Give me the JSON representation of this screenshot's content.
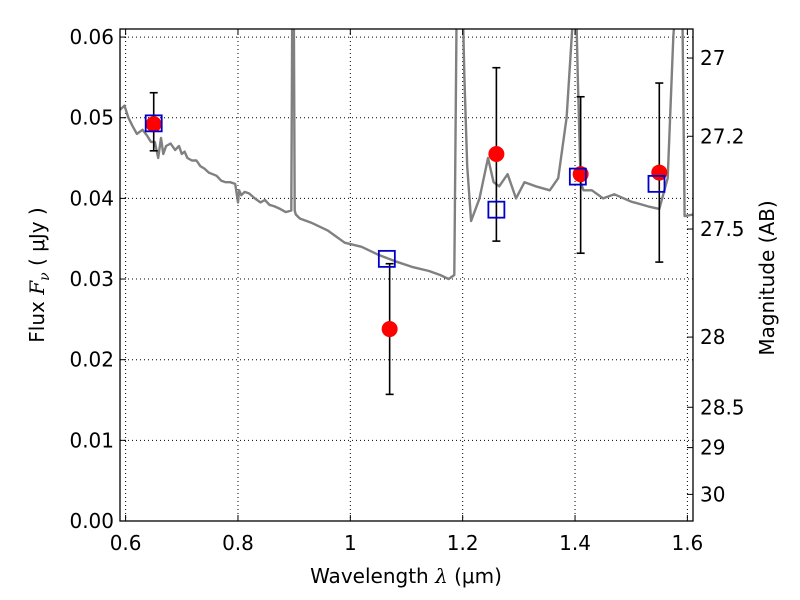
{
  "chart_data": {
    "type": "scatter",
    "title": "",
    "xlabel": {
      "prefix": "Wavelength ",
      "symbol": "λ",
      "unit": " (μm)"
    },
    "ylabel": {
      "prefix": "Flux ",
      "symbol": "F",
      "subscript": "ν",
      "unit": " ( μJy )"
    },
    "ylabel_right": "Magnitude (AB)",
    "xlim": [
      0.59,
      1.61
    ],
    "ylim": [
      0.0,
      0.061
    ],
    "grid": true,
    "grid_style": "dotted",
    "x_ticks": [
      0.6,
      0.8,
      1.0,
      1.2,
      1.4,
      1.6
    ],
    "x_tick_labels": [
      "0.6",
      "0.8",
      "1",
      "1.2",
      "1.4",
      "1.6"
    ],
    "y_ticks": [
      0.0,
      0.01,
      0.02,
      0.03,
      0.04,
      0.05,
      0.06
    ],
    "y_tick_labels": [
      "0.00",
      "0.01",
      "0.02",
      "0.03",
      "0.04",
      "0.05",
      "0.06"
    ],
    "right_ticks": [
      {
        "label": "27",
        "flux": 0.0574
      },
      {
        "label": "27.2",
        "flux": 0.0477
      },
      {
        "label": "27.5",
        "flux": 0.0362
      },
      {
        "label": "28",
        "flux": 0.0228
      },
      {
        "label": "28.5",
        "flux": 0.0141
      },
      {
        "label": "29",
        "flux": 0.0091
      },
      {
        "label": "30",
        "flux": 0.0033
      }
    ],
    "series": [
      {
        "kind": "line",
        "color": "#808080",
        "x": [
          0.59,
          0.598,
          0.605,
          0.612,
          0.62,
          0.63,
          0.638,
          0.645,
          0.652,
          0.658,
          0.663,
          0.667,
          0.672,
          0.68,
          0.688,
          0.695,
          0.7,
          0.705,
          0.71,
          0.718,
          0.726,
          0.733,
          0.74,
          0.748,
          0.755,
          0.762,
          0.77,
          0.778,
          0.786,
          0.795,
          0.8,
          0.802,
          0.806,
          0.812,
          0.82,
          0.83,
          0.84,
          0.848,
          0.856,
          0.865,
          0.875,
          0.885,
          0.895,
          0.897,
          0.899,
          0.901,
          0.903,
          0.91,
          0.93,
          0.96,
          0.99,
          1.02,
          1.05,
          1.08,
          1.11,
          1.14,
          1.16,
          1.175,
          1.185,
          1.19,
          1.198,
          1.203,
          1.208,
          1.215,
          1.23,
          1.245,
          1.255,
          1.265,
          1.28,
          1.295,
          1.31,
          1.33,
          1.355,
          1.37,
          1.385,
          1.395,
          1.4,
          1.405,
          1.41,
          1.415,
          1.43,
          1.45,
          1.47,
          1.5,
          1.53,
          1.55,
          1.565,
          1.575,
          1.585,
          1.59,
          1.595,
          1.61
        ],
        "y": [
          0.051,
          0.0515,
          0.05,
          0.049,
          0.048,
          0.0485,
          0.0478,
          0.047,
          0.047,
          0.045,
          0.0475,
          0.0455,
          0.0465,
          0.0468,
          0.046,
          0.0465,
          0.0455,
          0.0458,
          0.045,
          0.0447,
          0.0447,
          0.044,
          0.0437,
          0.0432,
          0.043,
          0.0428,
          0.0422,
          0.042,
          0.042,
          0.0418,
          0.0395,
          0.041,
          0.0404,
          0.0408,
          0.0406,
          0.04,
          0.0395,
          0.0398,
          0.0392,
          0.039,
          0.0387,
          0.0383,
          0.0385,
          0.07,
          0.07,
          0.0385,
          0.038,
          0.0375,
          0.037,
          0.036,
          0.0345,
          0.034,
          0.033,
          0.0322,
          0.0315,
          0.031,
          0.0305,
          0.03,
          0.0305,
          0.07,
          0.07,
          0.055,
          0.044,
          0.0372,
          0.04,
          0.045,
          0.042,
          0.0415,
          0.043,
          0.04,
          0.042,
          0.0415,
          0.041,
          0.0425,
          0.05,
          0.061,
          0.07,
          0.055,
          0.042,
          0.041,
          0.041,
          0.04,
          0.0405,
          0.0396,
          0.039,
          0.0387,
          0.0425,
          0.06,
          0.07,
          0.07,
          0.0378,
          0.038
        ]
      },
      {
        "kind": "points",
        "marker": "open-square",
        "color": "#0000cc",
        "x": [
          0.65,
          1.065,
          1.26,
          1.405,
          1.545
        ],
        "y": [
          0.0493,
          0.0325,
          0.0386,
          0.0427,
          0.0418
        ]
      },
      {
        "kind": "points",
        "marker": "filled-circle",
        "color": "#ff0000",
        "x": [
          0.65,
          1.07,
          1.26,
          1.41,
          1.55
        ],
        "y": [
          0.0492,
          0.0238,
          0.0455,
          0.043,
          0.0432
        ],
        "err_low": [
          0.0459,
          0.0157,
          0.0347,
          0.0332,
          0.0321
        ],
        "err_high": [
          0.0531,
          0.0319,
          0.0562,
          0.0526,
          0.0543
        ]
      }
    ]
  }
}
